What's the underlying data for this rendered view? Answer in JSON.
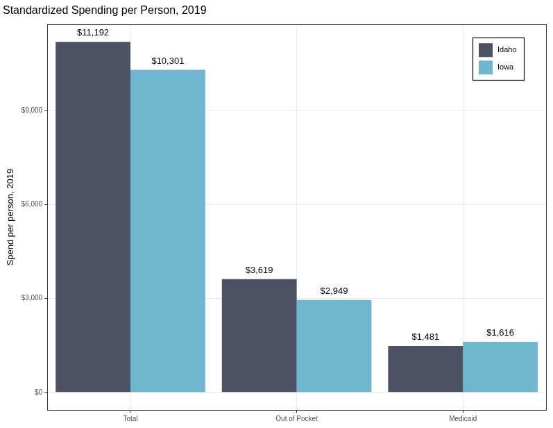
{
  "chart_data": {
    "type": "bar",
    "title": "Standardized Spending per Person, 2019",
    "y_label": "Spend per person, 2019",
    "categories": [
      "Total",
      "Out of Pocket",
      "Medicaid"
    ],
    "series": [
      {
        "name": "Idaho",
        "color": "#4b5263",
        "values": [
          11192,
          3619,
          1481
        ],
        "value_labels": [
          "$11,192",
          "$3,619",
          "$1,481"
        ]
      },
      {
        "name": "Iowa",
        "color": "#6fb7ce",
        "values": [
          10301,
          2949,
          1616
        ],
        "value_labels": [
          "$10,301",
          "$2,949",
          "$1,616"
        ]
      }
    ],
    "ylim": [
      -560,
      11750
    ],
    "yticks": [
      {
        "value": 0,
        "label": "$0"
      },
      {
        "value": 3000,
        "label": "$3,000"
      },
      {
        "value": 6000,
        "label": "$6,000"
      },
      {
        "value": 9000,
        "label": "$9,000"
      }
    ],
    "grid": true,
    "legend": "top-right",
    "data_labels": true
  }
}
